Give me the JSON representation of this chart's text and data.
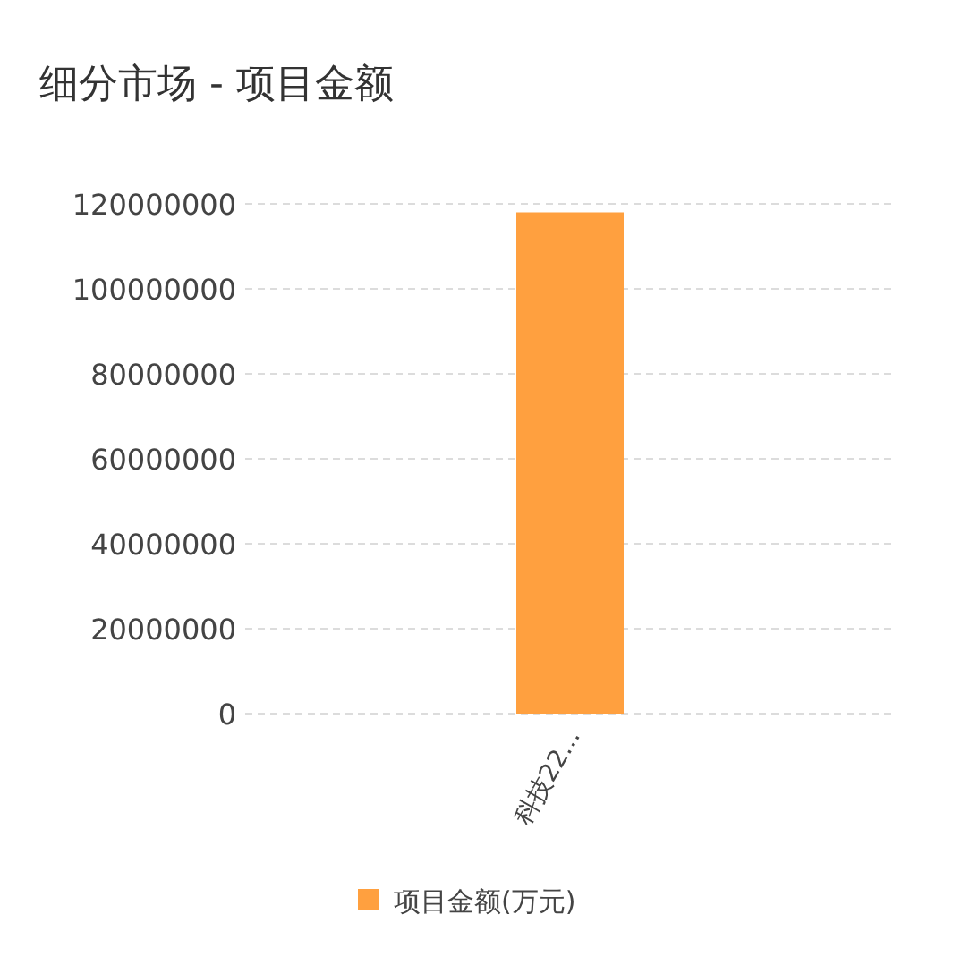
{
  "chart_data": {
    "type": "bar",
    "title": "细分市场 - 项目金额",
    "categories": [
      "科技22..."
    ],
    "series": [
      {
        "name": "项目金额(万元)",
        "color": "#ffa03f",
        "values": [
          118000000
        ]
      }
    ],
    "ylim": [
      0,
      120000000
    ],
    "yticks": [
      0,
      20000000,
      40000000,
      60000000,
      80000000,
      100000000,
      120000000
    ],
    "grid": "y",
    "legend": "bottom"
  }
}
